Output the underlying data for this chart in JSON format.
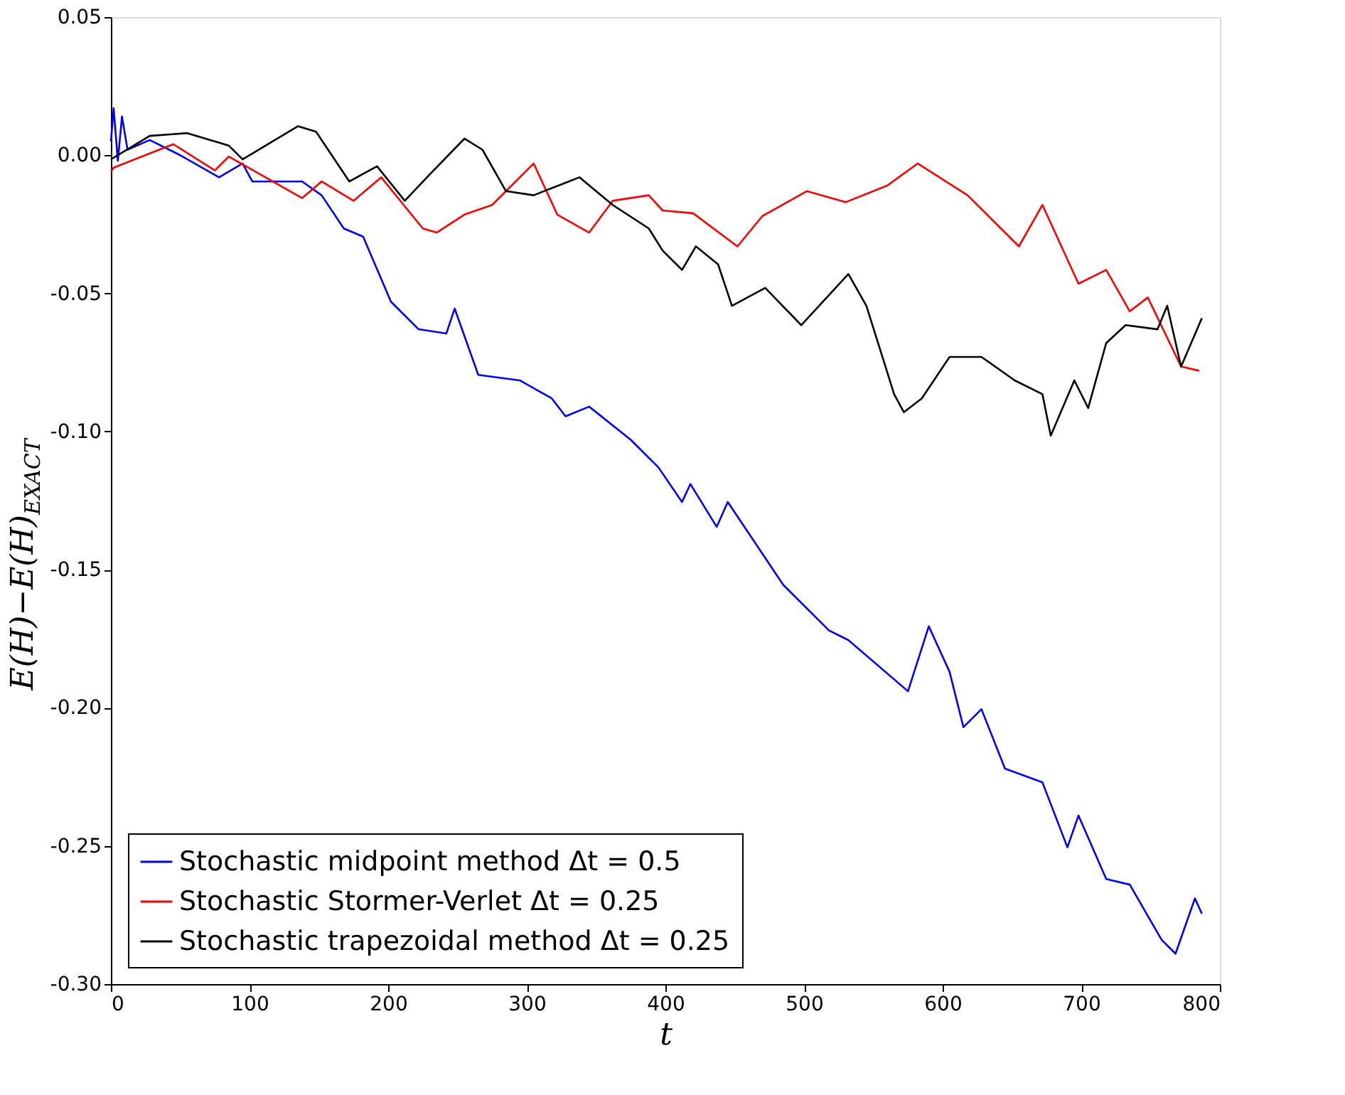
{
  "chart_data": {
    "type": "line",
    "xlabel": "t",
    "ylabel": "E(H)−E(H)$_{EXACT}$",
    "xlim": [
      0,
      800
    ],
    "xticks": [
      0,
      100,
      200,
      300,
      400,
      500,
      600,
      700,
      800
    ],
    "ylim": [
      -0.3,
      0.05
    ],
    "yticks": [
      {
        "value": -0.3,
        "label": "-0.30"
      },
      {
        "value": -0.25,
        "label": "-0.25"
      },
      {
        "value": -0.2,
        "label": "-0.20"
      },
      {
        "value": -0.15,
        "label": "-0.15"
      },
      {
        "value": -0.1,
        "label": "-0.10"
      },
      {
        "value": -0.05,
        "label": "-0.05"
      },
      {
        "value": 0,
        "label": "0.00"
      },
      {
        "value": 0.05,
        "label": "0.05"
      }
    ],
    "grid": false,
    "legend": "bottom left",
    "line_style": "solid",
    "marker": "none",
    "series": [
      {
        "name": "Stochastic midpoint method Δt = 0.5",
        "color": "#0000ff",
        "x": [
          0,
          2,
          5,
          8,
          12,
          28,
          50,
          78,
          95,
          102,
          138,
          152,
          168,
          182,
          202,
          222,
          242,
          248,
          265,
          295,
          318,
          328,
          345,
          375,
          395,
          412,
          418,
          437,
          445,
          485,
          518,
          532,
          575,
          590,
          605,
          615,
          628,
          645,
          672,
          690,
          698,
          718,
          735,
          758,
          768,
          782,
          787
        ],
        "values": [
          0.005,
          0.017,
          -0.002,
          0.014,
          0.002,
          0.0055,
          0.0,
          -0.008,
          -0.003,
          -0.0095,
          -0.0095,
          -0.0145,
          -0.0265,
          -0.0295,
          -0.053,
          -0.063,
          -0.0645,
          -0.0555,
          -0.0795,
          -0.0815,
          -0.088,
          -0.0945,
          -0.091,
          -0.103,
          -0.113,
          -0.1255,
          -0.119,
          -0.1345,
          -0.1255,
          -0.1555,
          -0.172,
          -0.1755,
          -0.194,
          -0.1705,
          -0.187,
          -0.207,
          -0.2005,
          -0.222,
          -0.227,
          -0.2505,
          -0.239,
          -0.262,
          -0.264,
          -0.284,
          -0.289,
          -0.269,
          -0.2745
        ]
      },
      {
        "name": "Stochastic Stormer-Verlet Δt = 0.25",
        "color": "#ff0000",
        "x": [
          0,
          2,
          45,
          75,
          85,
          138,
          152,
          175,
          195,
          225,
          235,
          255,
          275,
          305,
          322,
          345,
          362,
          388,
          398,
          420,
          452,
          470,
          502,
          530,
          560,
          582,
          618,
          655,
          672,
          698,
          718,
          735,
          748,
          772,
          785
        ],
        "values": [
          -0.006,
          -0.0045,
          0.004,
          -0.0055,
          -0.0005,
          -0.0155,
          -0.0095,
          -0.0165,
          -0.008,
          -0.0265,
          -0.028,
          -0.0215,
          -0.018,
          -0.003,
          -0.0215,
          -0.028,
          -0.0165,
          -0.0145,
          -0.02,
          -0.021,
          -0.033,
          -0.022,
          -0.013,
          -0.017,
          -0.011,
          -0.003,
          -0.0145,
          -0.033,
          -0.018,
          -0.0465,
          -0.0415,
          -0.0565,
          -0.0515,
          -0.0765,
          -0.078
        ]
      },
      {
        "name": "Stochastic trapezoidal method Δt = 0.25",
        "color": "#000000",
        "x": [
          0,
          28,
          55,
          85,
          95,
          135,
          148,
          172,
          192,
          212,
          228,
          255,
          268,
          285,
          305,
          338,
          362,
          388,
          398,
          412,
          422,
          438,
          448,
          472,
          498,
          532,
          545,
          565,
          572,
          585,
          605,
          628,
          652,
          672,
          678,
          695,
          705,
          718,
          732,
          755,
          762,
          772,
          787
        ],
        "values": [
          -0.0015,
          0.007,
          0.008,
          0.0035,
          -0.0015,
          0.0105,
          0.0085,
          -0.0095,
          -0.004,
          -0.0165,
          -0.008,
          0.006,
          0.002,
          -0.013,
          -0.0145,
          -0.008,
          -0.018,
          -0.0265,
          -0.0345,
          -0.0415,
          -0.033,
          -0.0395,
          -0.0545,
          -0.048,
          -0.0615,
          -0.043,
          -0.0545,
          -0.0865,
          -0.093,
          -0.088,
          -0.073,
          -0.073,
          -0.0815,
          -0.0865,
          -0.1015,
          -0.0815,
          -0.0915,
          -0.068,
          -0.0615,
          -0.063,
          -0.0545,
          -0.0765,
          -0.059
        ]
      }
    ]
  }
}
